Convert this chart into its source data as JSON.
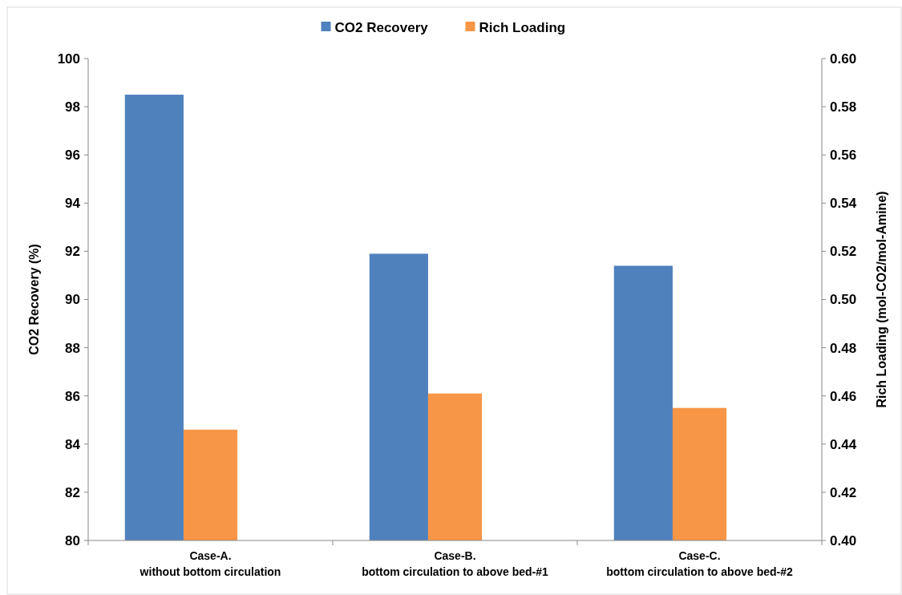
{
  "chart_data": {
    "type": "bar",
    "categories": [
      "Case-A.\nwithout bottom circulation",
      "Case-B.\nbottom circulation to above bed-#1",
      "Case-C.\nbottom circulation to above bed-#2"
    ],
    "series": [
      {
        "name": "CO2 Recovery",
        "color": "#4f81bd",
        "values": [
          98.5,
          91.9,
          91.4
        ]
      },
      {
        "name": "Rich Loading",
        "color": "#f79646",
        "values": [
          0.446,
          0.461,
          0.455
        ],
        "axis": "y2"
      }
    ],
    "ylabel": "CO2 Recovery (%)",
    "y2label": "Rich Loading (mol-CO2/mol-Amine)",
    "ylim": [
      80,
      100
    ],
    "yticks": [
      80,
      82,
      84,
      86,
      88,
      90,
      92,
      94,
      96,
      98,
      100
    ],
    "y2lim": [
      0.4,
      0.6
    ],
    "y2ticks": [
      {
        "value": 0.4,
        "label": "0.40"
      },
      {
        "value": 0.42,
        "label": "0.42"
      },
      {
        "value": 0.44,
        "label": "0.44"
      },
      {
        "value": 0.46,
        "label": "0.46"
      },
      {
        "value": 0.48,
        "label": "0.48"
      },
      {
        "value": 0.5,
        "label": "0.50"
      },
      {
        "value": 0.52,
        "label": "0.52"
      },
      {
        "value": 0.54,
        "label": "0.54"
      },
      {
        "value": 0.56,
        "label": "0.56"
      },
      {
        "value": 0.58,
        "label": "0.58"
      },
      {
        "value": 0.6,
        "label": "0.60"
      }
    ],
    "legend": "top",
    "grid": false
  }
}
